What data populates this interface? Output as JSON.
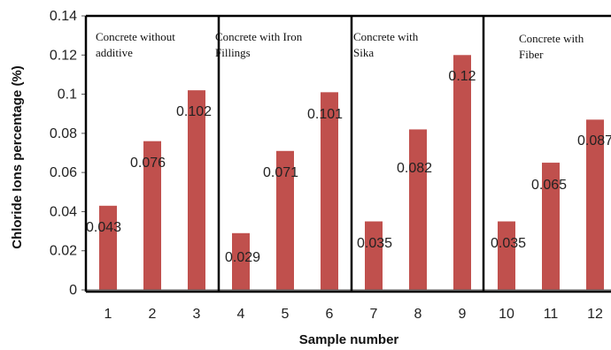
{
  "chart_data": {
    "type": "bar",
    "title": "",
    "xlabel": "Sample number",
    "ylabel": "Chloride Ions percentage (%)",
    "ylim": [
      0,
      0.14
    ],
    "yticks": [
      "0",
      "0.02",
      "0.04",
      "0.06",
      "0.08",
      "0.1",
      "0.12",
      "0.14"
    ],
    "categories": [
      "1",
      "2",
      "3",
      "4",
      "5",
      "6",
      "7",
      "8",
      "9",
      "10",
      "11",
      "12"
    ],
    "values": [
      0.043,
      0.076,
      0.102,
      0.029,
      0.071,
      0.101,
      0.035,
      0.082,
      0.12,
      0.035,
      0.065,
      0.087
    ],
    "data_labels": [
      "0.043",
      "0.076",
      "0.102",
      "0.029",
      "0.071",
      "0.101",
      "0.035",
      "0.082",
      "0.12",
      "0.035",
      "0.065",
      "0.087"
    ],
    "bar_color": "#C0504D",
    "grid": false,
    "groups": [
      {
        "lines": [
          "Concrete without",
          "additive"
        ]
      },
      {
        "lines": [
          "Concrete with Iron",
          "Fillings"
        ]
      },
      {
        "lines": [
          "Concrete with",
          "Sika"
        ]
      },
      {
        "lines": [
          "Concrete with",
          "Fiber"
        ]
      }
    ]
  }
}
